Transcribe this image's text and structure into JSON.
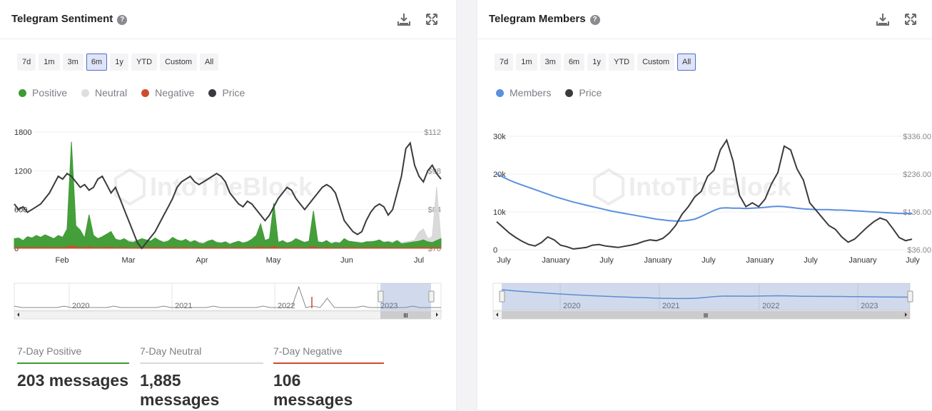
{
  "sentiment": {
    "title": "Telegram Sentiment",
    "help": "?",
    "ranges": [
      "7d",
      "1m",
      "3m",
      "6m",
      "1y",
      "YTD",
      "Custom",
      "All"
    ],
    "active_range": "6m",
    "legend": [
      {
        "label": "Positive",
        "color": "#3c9b32"
      },
      {
        "label": "Neutral",
        "color": "#dedede"
      },
      {
        "label": "Negative",
        "color": "#cf4b2e"
      },
      {
        "label": "Price",
        "color": "#3a3a3f"
      }
    ],
    "watermark": "IntoTheBlock",
    "navigator_years": [
      "2020",
      "2021",
      "2022",
      "2023"
    ],
    "stats": [
      {
        "label": "7-Day Positive",
        "value": "203 messages",
        "color": "#3c9b32"
      },
      {
        "label": "7-Day Neutral",
        "value": "1,885 messages",
        "color": "#d9d9d9"
      },
      {
        "label": "7-Day Negative",
        "value": "106 messages",
        "color": "#cf4b2e"
      }
    ]
  },
  "members": {
    "title": "Telegram Members",
    "help": "?",
    "ranges": [
      "7d",
      "1m",
      "3m",
      "6m",
      "1y",
      "YTD",
      "Custom",
      "All"
    ],
    "active_range": "All",
    "legend": [
      {
        "label": "Members",
        "color": "#5b8fe0"
      },
      {
        "label": "Price",
        "color": "#3a3a3f"
      }
    ],
    "watermark": "IntoTheBlock",
    "navigator_years": [
      "2020",
      "2021",
      "2022",
      "2023"
    ]
  },
  "chart_data": [
    {
      "type": "area",
      "title": "Telegram Sentiment",
      "x_tick_labels": [
        "Feb",
        "Mar",
        "Apr",
        "May",
        "Jun",
        "Jul"
      ],
      "y_left_ticks": [
        "1800",
        "1200",
        "600",
        "0"
      ],
      "y_right_ticks": [
        "$112",
        "$98",
        "$84",
        "$70"
      ],
      "ylim_left": [
        0,
        1800
      ],
      "ylim_right": [
        70,
        112
      ],
      "series": [
        {
          "name": "Positive",
          "axis": "left",
          "values": [
            150,
            160,
            120,
            180,
            160,
            200,
            170,
            210,
            180,
            150,
            200,
            170,
            300,
            1650,
            350,
            280,
            160,
            520,
            200,
            150,
            180,
            220,
            260,
            140,
            120,
            150,
            100,
            90,
            120,
            150,
            130,
            110,
            160,
            120,
            90,
            110,
            170,
            130,
            110,
            140,
            90,
            120,
            80,
            70,
            110,
            130,
            90,
            80,
            100,
            60,
            90,
            110,
            80,
            100,
            140,
            200,
            380,
            120,
            150,
            700,
            90,
            120,
            80,
            100,
            150,
            120,
            90,
            110,
            580,
            100,
            90,
            120,
            70,
            90,
            80,
            150,
            110,
            100,
            90,
            80,
            100,
            100,
            110,
            130,
            90,
            100,
            80,
            120,
            70,
            80,
            90,
            100,
            110,
            130,
            100,
            90,
            120,
            150
          ]
        },
        {
          "name": "Neutral",
          "axis": "left",
          "values": [
            120,
            130,
            110,
            150,
            140,
            160,
            150,
            180,
            160,
            130,
            150,
            140,
            200,
            500,
            250,
            220,
            160,
            380,
            200,
            150,
            160,
            200,
            220,
            150,
            130,
            140,
            120,
            110,
            130,
            140,
            130,
            120,
            140,
            120,
            110,
            120,
            140,
            130,
            120,
            130,
            110,
            120,
            100,
            90,
            110,
            120,
            100,
            90,
            100,
            80,
            90,
            110,
            90,
            100,
            130,
            150,
            250,
            110,
            130,
            350,
            100,
            110,
            90,
            100,
            120,
            110,
            100,
            110,
            320,
            100,
            90,
            110,
            90,
            100,
            90,
            120,
            110,
            100,
            100,
            90,
            100,
            110,
            110,
            120,
            100,
            110,
            100,
            120,
            90,
            100,
            110,
            130,
            250,
            300,
            150,
            180,
            950,
            130
          ]
        },
        {
          "name": "Negative",
          "axis": "left",
          "values": [
            10,
            12,
            8,
            15,
            10,
            12,
            14,
            10,
            12,
            8,
            10,
            12,
            15,
            40,
            20,
            15,
            10,
            25,
            12,
            10,
            12,
            15,
            14,
            10,
            8,
            10,
            8,
            6,
            8,
            10,
            8,
            8,
            10,
            8,
            6,
            8,
            10,
            8,
            8,
            10,
            6,
            8,
            6,
            5,
            8,
            10,
            6,
            6,
            8,
            5,
            6,
            8,
            6,
            8,
            10,
            12,
            20,
            8,
            10,
            30,
            6,
            8,
            6,
            8,
            10,
            8,
            6,
            8,
            25,
            8,
            6,
            8,
            5,
            6,
            6,
            10,
            8,
            8,
            6,
            6,
            8,
            8,
            8,
            10,
            6,
            8,
            6,
            10,
            5,
            6,
            8,
            8,
            10,
            12,
            10,
            8,
            12,
            10
          ]
        },
        {
          "name": "Price",
          "axis": "right",
          "values": [
            86,
            84,
            85,
            83,
            84,
            85,
            86,
            88,
            90,
            93,
            96,
            95,
            97,
            96,
            94,
            92,
            93,
            91,
            92,
            95,
            96,
            93,
            90,
            92,
            88,
            84,
            80,
            76,
            72,
            70,
            72,
            74,
            76,
            79,
            82,
            85,
            88,
            92,
            94,
            95,
            96,
            94,
            93,
            94,
            95,
            96,
            97,
            96,
            94,
            90,
            88,
            86,
            85,
            87,
            86,
            84,
            82,
            80,
            82,
            85,
            88,
            90,
            92,
            91,
            88,
            86,
            84,
            86,
            88,
            90,
            92,
            93,
            92,
            90,
            85,
            80,
            78,
            76,
            75,
            76,
            80,
            83,
            85,
            86,
            85,
            82,
            84,
            90,
            96,
            106,
            108,
            100,
            96,
            94,
            98,
            100,
            97,
            95
          ]
        }
      ]
    },
    {
      "type": "line",
      "title": "Telegram Members",
      "x_tick_labels": [
        "July",
        "January",
        "July",
        "January",
        "July",
        "January",
        "July",
        "January",
        "July"
      ],
      "y_left_ticks": [
        "30k",
        "20k",
        "10k",
        "0"
      ],
      "y_right_ticks": [
        "$336.00",
        "$236.00",
        "$136.00",
        "$36.00"
      ],
      "ylim_left": [
        0,
        30000
      ],
      "ylim_right": [
        36,
        336
      ],
      "series": [
        {
          "name": "Members",
          "axis": "left",
          "values": [
            20000,
            19200,
            18400,
            17700,
            17100,
            16500,
            15900,
            15300,
            14700,
            14100,
            13600,
            13100,
            12600,
            12200,
            11800,
            11400,
            11000,
            10600,
            10200,
            9900,
            9600,
            9300,
            9000,
            8700,
            8400,
            8100,
            7900,
            7700,
            7600,
            7600,
            7800,
            8100,
            8800,
            9600,
            10400,
            11000,
            11100,
            11000,
            11000,
            10900,
            11000,
            11100,
            11200,
            11400,
            11500,
            11400,
            11200,
            11000,
            10800,
            10700,
            10600,
            10600,
            10600,
            10500,
            10500,
            10400,
            10300,
            10200,
            10100,
            10000,
            9900,
            9800,
            9700,
            9600,
            9600,
            9600
          ]
        },
        {
          "name": "Price",
          "axis": "right",
          "values": [
            110,
            95,
            80,
            68,
            58,
            50,
            46,
            55,
            70,
            62,
            48,
            44,
            38,
            40,
            42,
            48,
            50,
            46,
            44,
            42,
            45,
            48,
            52,
            58,
            62,
            60,
            66,
            80,
            100,
            130,
            150,
            176,
            190,
            230,
            246,
            300,
            326,
            270,
            180,
            150,
            160,
            150,
            170,
            210,
            240,
            310,
            300,
            250,
            220,
            160,
            140,
            120,
            100,
            90,
            70,
            56,
            64,
            80,
            96,
            110,
            120,
            114,
            92,
            68,
            60,
            64
          ]
        }
      ]
    }
  ]
}
